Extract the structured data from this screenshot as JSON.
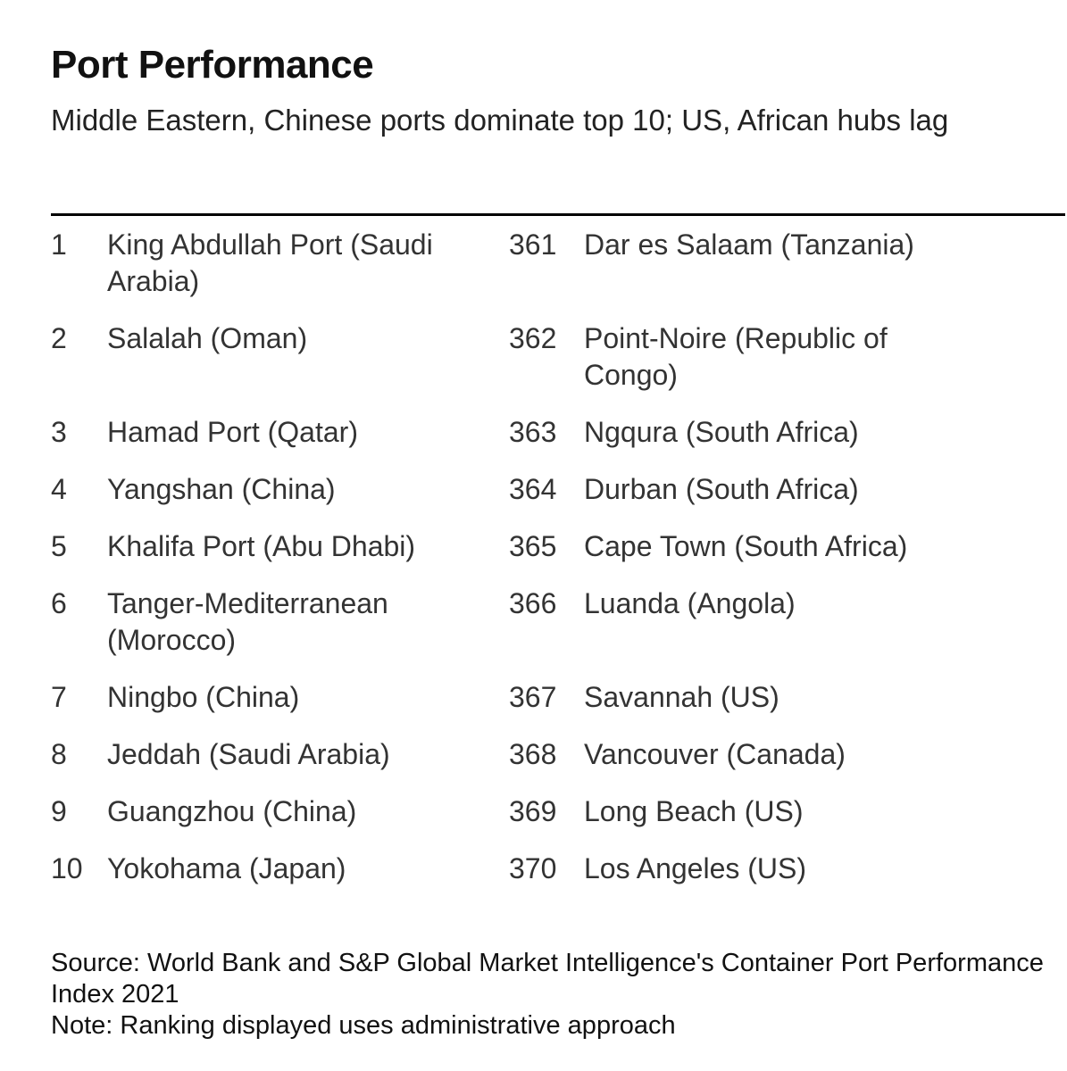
{
  "header": {
    "title": "Port Performance",
    "subtitle": "Middle Eastern, Chinese ports dominate top 10; US, African hubs lag"
  },
  "table": {
    "left": [
      {
        "rank": "1",
        "name": "King Abdullah Port (Saudi Arabia)"
      },
      {
        "rank": "2",
        "name": "Salalah (Oman)"
      },
      {
        "rank": "3",
        "name": "Hamad Port (Qatar)"
      },
      {
        "rank": "4",
        "name": "Yangshan (China)"
      },
      {
        "rank": "5",
        "name": "Khalifa Port (Abu Dhabi)"
      },
      {
        "rank": "6",
        "name": "Tanger-Mediterranean (Morocco)"
      },
      {
        "rank": "7",
        "name": "Ningbo (China)"
      },
      {
        "rank": "8",
        "name": "Jeddah (Saudi Arabia)"
      },
      {
        "rank": "9",
        "name": "Guangzhou (China)"
      },
      {
        "rank": "10",
        "name": "Yokohama (Japan)"
      }
    ],
    "right": [
      {
        "rank": "361",
        "name": "Dar es Salaam (Tanzania)"
      },
      {
        "rank": "362",
        "name": "Point-Noire (Republic of Congo)"
      },
      {
        "rank": "363",
        "name": "Ngqura (South Africa)"
      },
      {
        "rank": "364",
        "name": "Durban (South Africa)"
      },
      {
        "rank": "365",
        "name": "Cape Town (South Africa)"
      },
      {
        "rank": "366",
        "name": "Luanda (Angola)"
      },
      {
        "rank": "367",
        "name": "Savannah (US)"
      },
      {
        "rank": "368",
        "name": "Vancouver (Canada)"
      },
      {
        "rank": "369",
        "name": "Long Beach (US)"
      },
      {
        "rank": "370",
        "name": "Los Angeles (US)"
      }
    ]
  },
  "footer": {
    "source": "Source: World Bank and S&P Global Market Intelligence's Container Port Performance Index 2021",
    "note": "Note: Ranking displayed uses administrative approach"
  }
}
